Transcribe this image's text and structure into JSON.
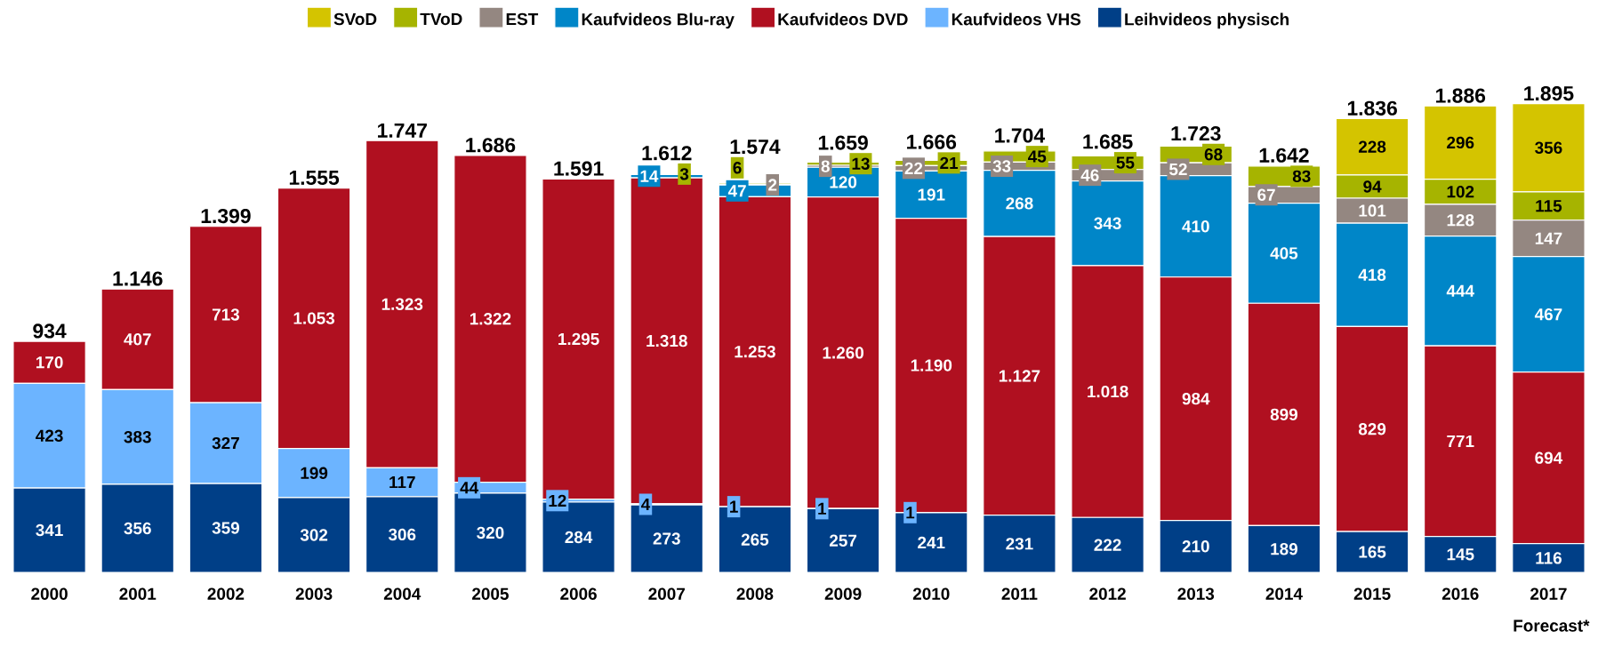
{
  "chart_data": {
    "type": "bar",
    "stacked": true,
    "legend": "top",
    "categories": [
      "2000",
      "2001",
      "2002",
      "2003",
      "2004",
      "2005",
      "2006",
      "2007",
      "2008",
      "2009",
      "2010",
      "2011",
      "2012",
      "2013",
      "2014",
      "2015",
      "2016",
      "2017"
    ],
    "series": [
      {
        "name": "Leihvideos physisch",
        "color": "#003f87",
        "values": [
          341,
          356,
          359,
          302,
          306,
          320,
          284,
          273,
          265,
          257,
          241,
          231,
          222,
          210,
          189,
          165,
          145,
          116
        ],
        "value_labels": [
          "341",
          "356",
          "359",
          "302",
          "306",
          "320",
          "284",
          "273",
          "265",
          "257",
          "241",
          "231",
          "222",
          "210",
          "189",
          "165",
          "145",
          "116"
        ]
      },
      {
        "name": "Kaufvideos VHS",
        "color": "#6cb4ff",
        "values": [
          423,
          383,
          327,
          199,
          117,
          44,
          12,
          4,
          1,
          1,
          1,
          null,
          null,
          null,
          null,
          null,
          null,
          null
        ],
        "value_labels": [
          "423",
          "383",
          "327",
          "199",
          "117",
          "44",
          "12",
          "4",
          "1",
          "1",
          "1",
          null,
          null,
          null,
          null,
          null,
          null,
          null
        ]
      },
      {
        "name": "Kaufvideos DVD",
        "color": "#b01020",
        "values": [
          170,
          407,
          713,
          1053,
          1323,
          1322,
          1295,
          1318,
          1253,
          1260,
          1190,
          1127,
          1018,
          984,
          899,
          829,
          771,
          694
        ],
        "value_labels": [
          "170",
          "407",
          "713",
          "1.053",
          "1.323",
          "1.322",
          "1.295",
          "1.318",
          "1.253",
          "1.260",
          "1.190",
          "1.127",
          "1.018",
          "984",
          "899",
          "829",
          "771",
          "694"
        ]
      },
      {
        "name": "Kaufvideos Blu-ray",
        "color": "#0086c8",
        "values": [
          null,
          null,
          null,
          null,
          null,
          null,
          null,
          14,
          47,
          120,
          191,
          268,
          343,
          410,
          405,
          418,
          444,
          467
        ],
        "value_labels": [
          null,
          null,
          null,
          null,
          null,
          null,
          null,
          "14",
          "47",
          "120",
          "191",
          "268",
          "343",
          "410",
          "405",
          "418",
          "444",
          "467"
        ]
      },
      {
        "name": "EST",
        "color": "#948781",
        "values": [
          null,
          null,
          null,
          null,
          null,
          null,
          null,
          null,
          2,
          8,
          22,
          33,
          46,
          52,
          67,
          101,
          128,
          147
        ],
        "value_labels": [
          null,
          null,
          null,
          null,
          null,
          null,
          null,
          null,
          "2",
          "8",
          "22",
          "33",
          "46",
          "52",
          "67",
          "101",
          "128",
          "147"
        ]
      },
      {
        "name": "TVoD",
        "color": "#a6b400",
        "values": [
          null,
          null,
          null,
          null,
          null,
          null,
          null,
          3,
          6,
          13,
          21,
          45,
          55,
          68,
          83,
          94,
          102,
          115
        ],
        "value_labels": [
          null,
          null,
          null,
          null,
          null,
          null,
          null,
          "3",
          "6",
          "13",
          "21",
          "45",
          "55",
          "68",
          "83",
          "94",
          "102",
          "115"
        ]
      },
      {
        "name": "SVoD",
        "color": "#d4c400",
        "values": [
          null,
          null,
          null,
          null,
          null,
          null,
          null,
          null,
          null,
          null,
          null,
          null,
          null,
          null,
          null,
          228,
          296,
          356
        ],
        "value_labels": [
          null,
          null,
          null,
          null,
          null,
          null,
          null,
          null,
          null,
          null,
          null,
          null,
          null,
          null,
          null,
          "228",
          "296",
          "356"
        ]
      }
    ],
    "totals": [
      "934",
      "1.146",
      "1.399",
      "1.555",
      "1.747",
      "1.686",
      "1.591",
      "1.612",
      "1.574",
      "1.659",
      "1.666",
      "1.704",
      "1.685",
      "1.723",
      "1.642",
      "1.836",
      "1.886",
      "1.895"
    ],
    "annotations": [
      "Forecast*"
    ]
  }
}
